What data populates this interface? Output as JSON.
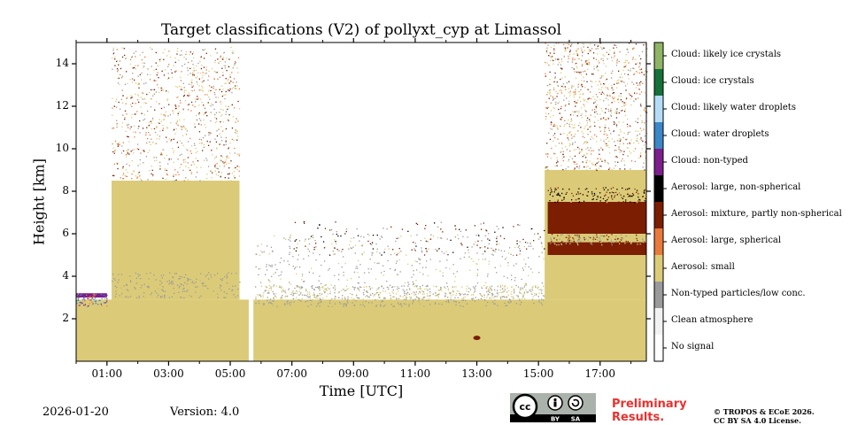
{
  "chart_data": {
    "type": "heatmap",
    "title": "Target classifications (V2) of pollyxt_cyp at Limassol",
    "xlabel": "Time [UTC]",
    "ylabel": "Height [km]",
    "x_range_hours": [
      0,
      18.5
    ],
    "ylim": [
      0,
      15
    ],
    "x_ticks": [
      {
        "hour": 1,
        "label": "01:00"
      },
      {
        "hour": 3,
        "label": "03:00"
      },
      {
        "hour": 5,
        "label": "05:00"
      },
      {
        "hour": 7,
        "label": "07:00"
      },
      {
        "hour": 9,
        "label": "09:00"
      },
      {
        "hour": 11,
        "label": "11:00"
      },
      {
        "hour": 13,
        "label": "13:00"
      },
      {
        "hour": 15,
        "label": "15:00"
      },
      {
        "hour": 17,
        "label": "17:00"
      }
    ],
    "y_ticks": [
      {
        "value": 2,
        "label": "2"
      },
      {
        "value": 4,
        "label": "4"
      },
      {
        "value": 6,
        "label": "6"
      },
      {
        "value": 8,
        "label": "8"
      },
      {
        "value": 10,
        "label": "10"
      },
      {
        "value": 12,
        "label": "12"
      },
      {
        "value": 14,
        "label": "14"
      }
    ],
    "legend": [
      {
        "label": "Cloud: likely ice crystals",
        "color": "#8fb466"
      },
      {
        "label": "Cloud: ice crystals",
        "color": "#16703a"
      },
      {
        "label": "Cloud: likely water droplets",
        "color": "#b5dcf7"
      },
      {
        "label": "Cloud: water droplets",
        "color": "#3b87c8"
      },
      {
        "label": "Cloud: non-typed",
        "color": "#7c1e8c"
      },
      {
        "label": "Aerosol: large, non-spherical",
        "color": "#000000"
      },
      {
        "label": "Aerosol: mixture, partly non-spherical",
        "color": "#7b1e02"
      },
      {
        "label": "Aerosol: large, spherical",
        "color": "#ea7a3c"
      },
      {
        "label": "Aerosol: small",
        "color": "#dbcb78"
      },
      {
        "label": "Non-typed particles/low conc.",
        "color": "#9a9a9a"
      },
      {
        "label": "Clean atmosphere",
        "color": "#f2f2f2"
      },
      {
        "label": "No signal",
        "color": "#ffffff"
      }
    ],
    "regions": [
      {
        "class": "Aerosol: small",
        "t0": 0.0,
        "t1": 18.5,
        "h0": 0.0,
        "h1": 2.9
      },
      {
        "class": "Aerosol: small",
        "t0": 1.15,
        "t1": 5.3,
        "h0": 2.9,
        "h1": 8.5
      },
      {
        "class": "Aerosol: small",
        "t0": 15.2,
        "t1": 18.5,
        "h0": 2.9,
        "h1": 9.0
      },
      {
        "class": "Aerosol: mixture, partly non-spherical",
        "t0": 15.3,
        "t1": 18.5,
        "h0": 6.0,
        "h1": 7.5
      },
      {
        "class": "Aerosol: mixture, partly non-spherical",
        "t0": 15.3,
        "t1": 18.5,
        "h0": 5.0,
        "h1": 5.6
      },
      {
        "class": "Cloud: non-typed",
        "t0": 0.0,
        "t1": 1.0,
        "h0": 3.0,
        "h1": 3.2
      },
      {
        "class": "No signal",
        "t0": 5.6,
        "t1": 5.75,
        "h0": 0.0,
        "h1": 15.0
      }
    ],
    "point_marks": [
      {
        "class": "Aerosol: mixture, partly non-spherical",
        "t": 13.0,
        "h": 1.1
      }
    ]
  },
  "footer": {
    "date": "2026-01-20",
    "version": "Version: 4.0",
    "preliminary": "Preliminary Results.",
    "copyright_line1": "© TROPOS & ECoE 2026.",
    "copyright_line2": "CC BY SA 4.0 License.",
    "license_badge_cc": "cc",
    "license_badge_by": "BY",
    "license_badge_sa": "SA"
  }
}
